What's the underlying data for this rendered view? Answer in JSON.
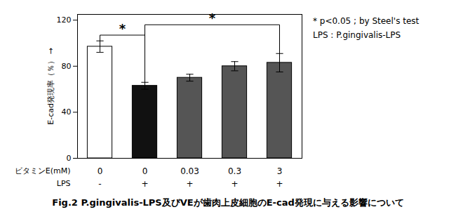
{
  "chart_data": {
    "type": "bar",
    "categories": [
      "0",
      "0",
      "0.03",
      "0.3",
      "3"
    ],
    "xlabel": "ビタミンE(mM)",
    "categories2": [
      "-",
      "+",
      "+",
      "+",
      "+"
    ],
    "xlabel2": "LPS",
    "values": [
      97,
      63,
      70,
      80,
      83
    ],
    "errors": [
      5,
      3,
      3,
      4,
      8
    ],
    "colors": [
      "#ffffff",
      "#111111",
      "#555555",
      "#555555",
      "#555555"
    ],
    "ylabel": "E-cad発現率（％）",
    "ylim": [
      0,
      125
    ],
    "yticks": [
      0,
      40,
      80,
      120
    ],
    "grid": false,
    "annotations": [
      {
        "text": "*",
        "x1": 0,
        "x2": 1,
        "y": 107
      },
      {
        "text": "*",
        "x1": 1,
        "x2": 4,
        "y": 116
      },
      {
        "text": "* p<0.05 ; by Steel's test"
      },
      {
        "text": "LPS : P.gingivalis-LPS"
      }
    ],
    "caption": "Fig.2 P.gingivalis-LPS及びVEが歯肉上皮細胞のE-cad発現に与える影響について"
  }
}
